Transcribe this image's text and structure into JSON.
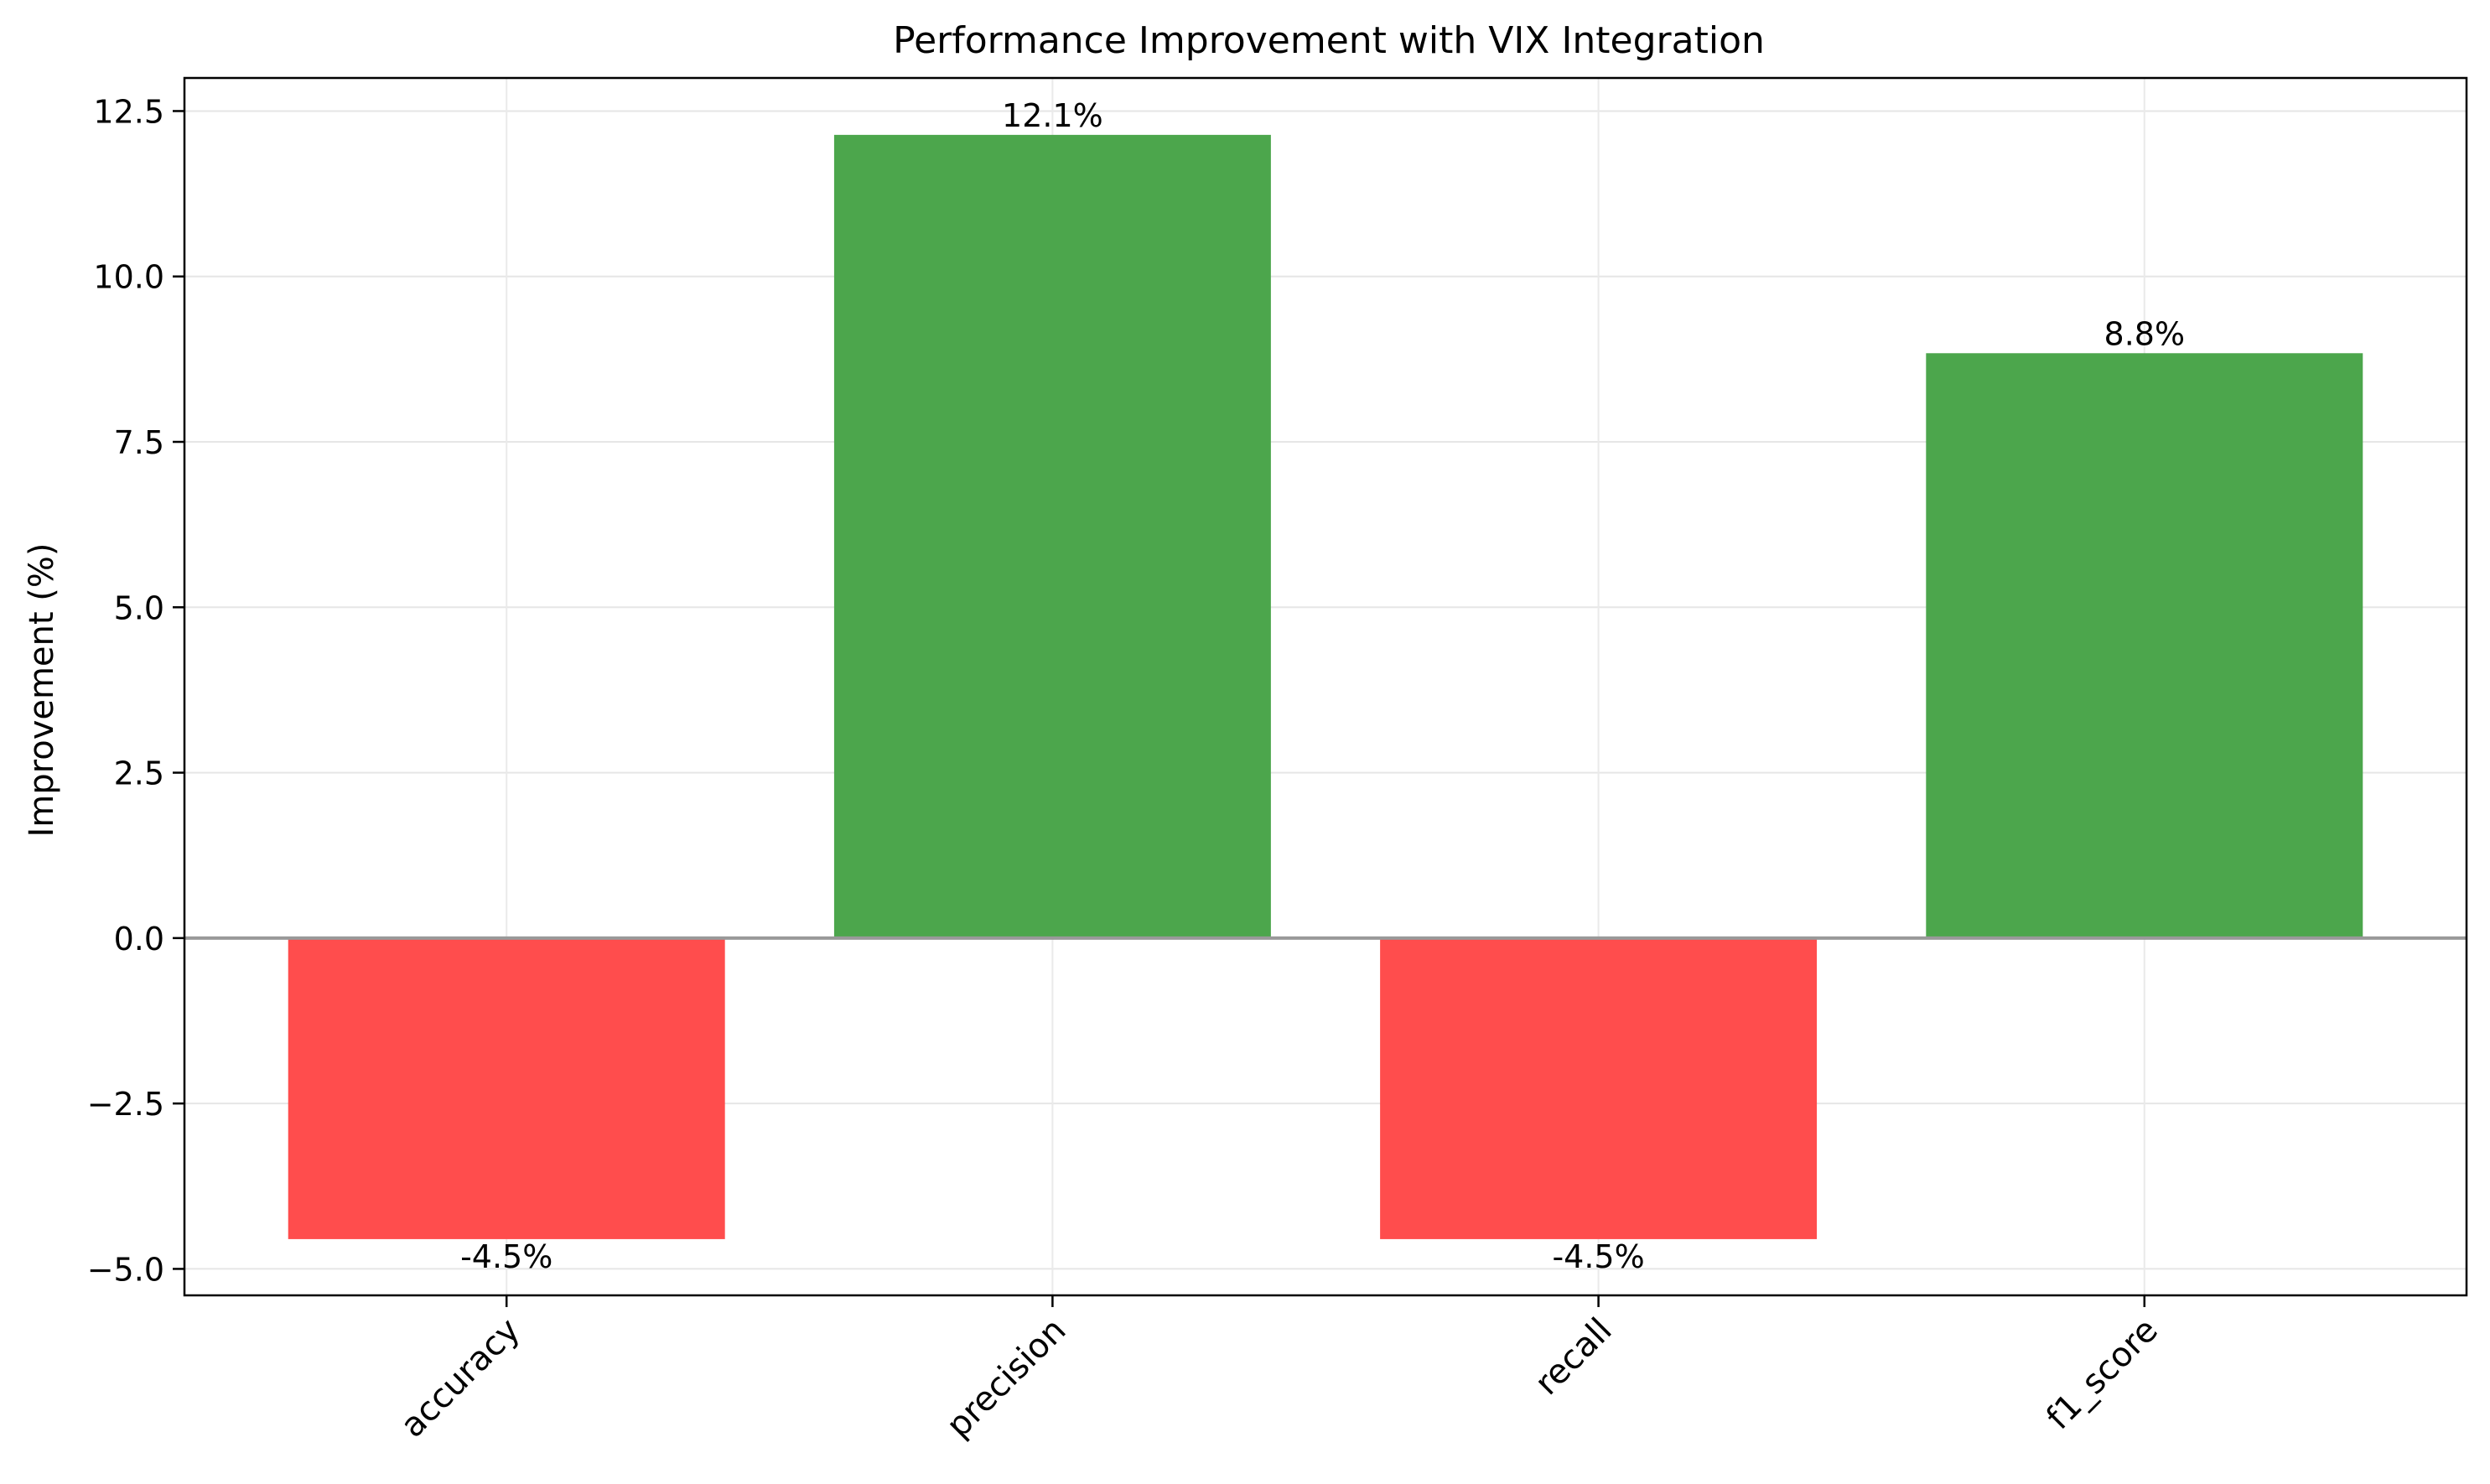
{
  "chart_data": {
    "type": "bar",
    "title": "Performance Improvement with VIX Integration",
    "xlabel": "",
    "ylabel": "Improvement (%)",
    "categories": [
      "accuracy",
      "precision",
      "recall",
      "f1_score"
    ],
    "values": [
      -4.55,
      12.14,
      -4.55,
      8.84
    ],
    "data_labels": [
      "-4.5%",
      "12.1%",
      "-4.5%",
      "8.8%"
    ],
    "ylim": [
      -5.4,
      13.0
    ],
    "yticks": [
      -5.0,
      -2.5,
      0.0,
      2.5,
      5.0,
      7.5,
      10.0,
      12.5
    ],
    "ytick_labels": [
      "−5.0",
      "−2.5",
      "0.0",
      "2.5",
      "5.0",
      "7.5",
      "10.0",
      "12.5"
    ],
    "grid": true,
    "zero_line": true,
    "x_tick_rotation_deg": 45,
    "colors": {
      "positive": "#4ca64c",
      "negative": "#ff4d4d",
      "grid": "#e6e6e6",
      "zero_line": "#999999",
      "axes": "#000000"
    }
  }
}
